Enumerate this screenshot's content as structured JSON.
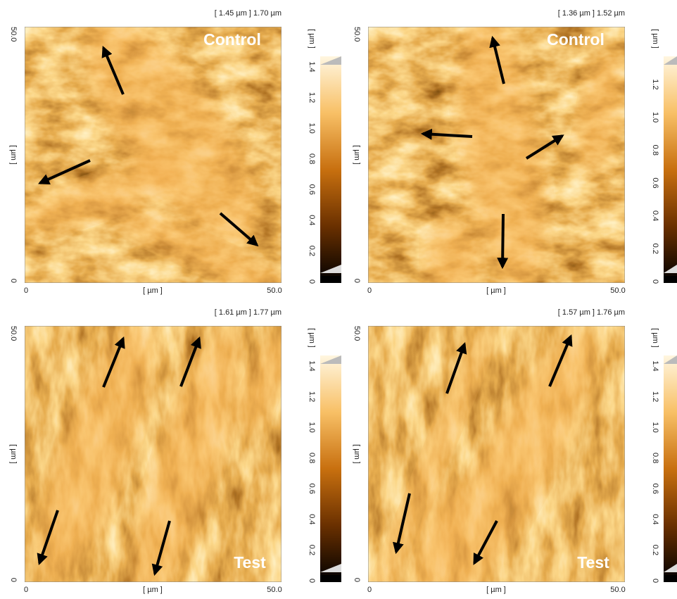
{
  "panels": [
    {
      "header": "[ 1.45 µm ] 1.70 µm",
      "label": "Control",
      "y_axis": {
        "top": "50.0",
        "unit": "[ µm ]",
        "bottom": "0"
      },
      "x_axis": {
        "left": "0",
        "unit": "[ µm ]",
        "right": "50.0"
      },
      "colorbar": {
        "unit": "[ µm ]",
        "ticks": [
          "0",
          "0.2",
          "0.4",
          "0.6",
          "0.8",
          "1.0",
          "1.2",
          "1.4"
        ]
      }
    },
    {
      "header": "[ 1.36 µm ] 1.52 µm",
      "label": "Control",
      "y_axis": {
        "top": "50.0",
        "unit": "[ µm ]",
        "bottom": "0"
      },
      "x_axis": {
        "left": "0",
        "unit": "[ µm ]",
        "right": "50.0"
      },
      "colorbar": {
        "unit": "[ µm ]",
        "ticks": [
          "0",
          "0.2",
          "0.4",
          "0.6",
          "0.8",
          "1.0",
          "1.2"
        ]
      }
    },
    {
      "header": "[ 1.61 µm ] 1.77 µm",
      "label": "Test",
      "y_axis": {
        "top": "50.0",
        "unit": "[ µm ]",
        "bottom": "0"
      },
      "x_axis": {
        "left": "0",
        "unit": "[ µm ]",
        "right": "50.0"
      },
      "colorbar": {
        "unit": "[ µm ]",
        "ticks": [
          "0",
          "0.2",
          "0.4",
          "0.6",
          "0.8",
          "1.0",
          "1.2",
          "1.4"
        ]
      }
    },
    {
      "header": "[ 1.57 µm ] 1.76 µm",
      "label": "Test",
      "y_axis": {
        "top": "50.0",
        "unit": "[ µm ]",
        "bottom": "0"
      },
      "x_axis": {
        "left": "0",
        "unit": "[ µm ]",
        "right": "50.0"
      },
      "colorbar": {
        "unit": "[ µm ]",
        "ticks": [
          "0",
          "0.2",
          "0.4",
          "0.6",
          "0.8",
          "1.0",
          "1.2",
          "1.4"
        ]
      }
    }
  ]
}
